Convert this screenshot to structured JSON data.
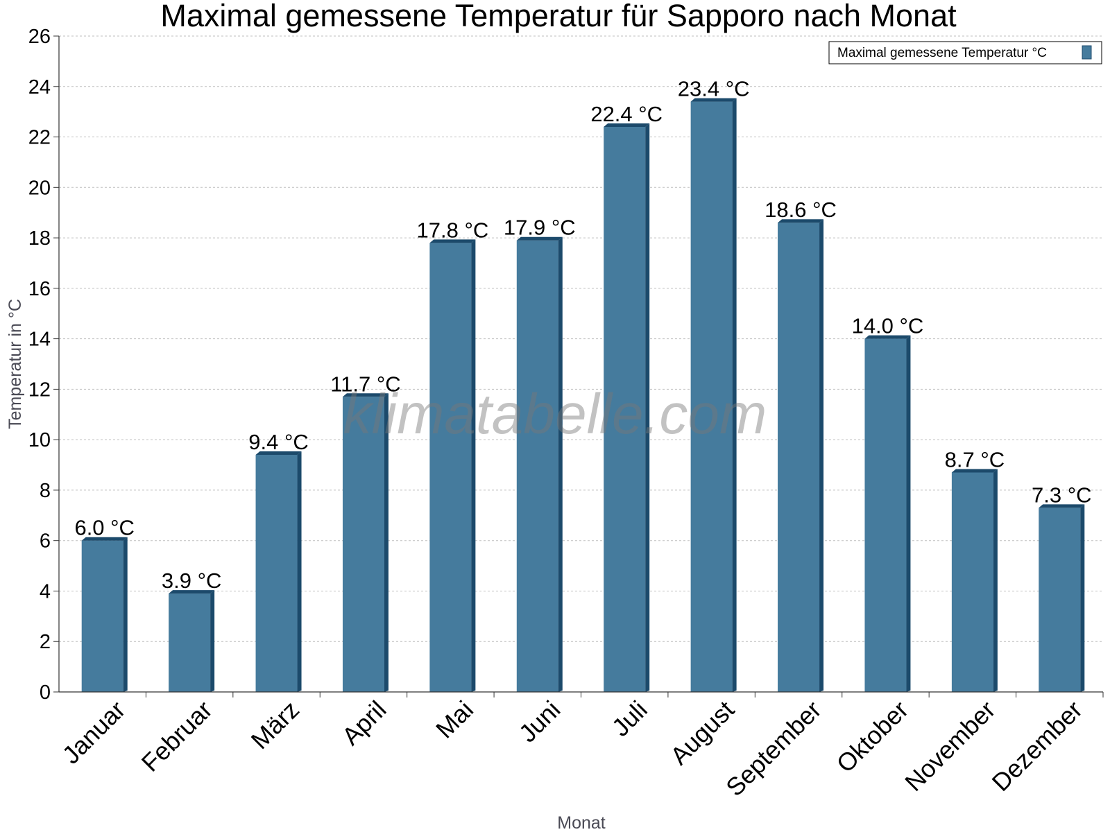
{
  "colors": {
    "bar_face": "#457b9d",
    "bar_side": "#1c4a6b",
    "grid": "#bfbfbf",
    "axis": "#333333"
  },
  "watermark": "klimatabelle.com",
  "chart_data": {
    "type": "bar",
    "title": "Maximal gemessene Temperatur für Sapporo nach Monat",
    "xlabel": "Monat",
    "ylabel": "Temperatur in °C",
    "ylim": [
      0,
      26
    ],
    "ytick_step": 2,
    "grid": true,
    "legend_position": "top-right",
    "categories": [
      "Januar",
      "Februar",
      "März",
      "April",
      "Mai",
      "Juni",
      "Juli",
      "August",
      "September",
      "Oktober",
      "November",
      "Dezember"
    ],
    "series": [
      {
        "name": "Maximal gemessene Temperatur °C",
        "values": [
          6.0,
          3.9,
          9.4,
          11.7,
          17.8,
          17.9,
          22.4,
          23.4,
          18.6,
          14.0,
          8.7,
          7.3
        ],
        "data_labels": [
          "6.0 °C",
          "3.9 °C",
          "9.4 °C",
          "11.7 °C",
          "17.8 °C",
          "17.9 °C",
          "22.4 °C",
          "23.4 °C",
          "18.6 °C",
          "14.0 °C",
          "8.7 °C",
          "7.3 °C"
        ]
      }
    ]
  }
}
